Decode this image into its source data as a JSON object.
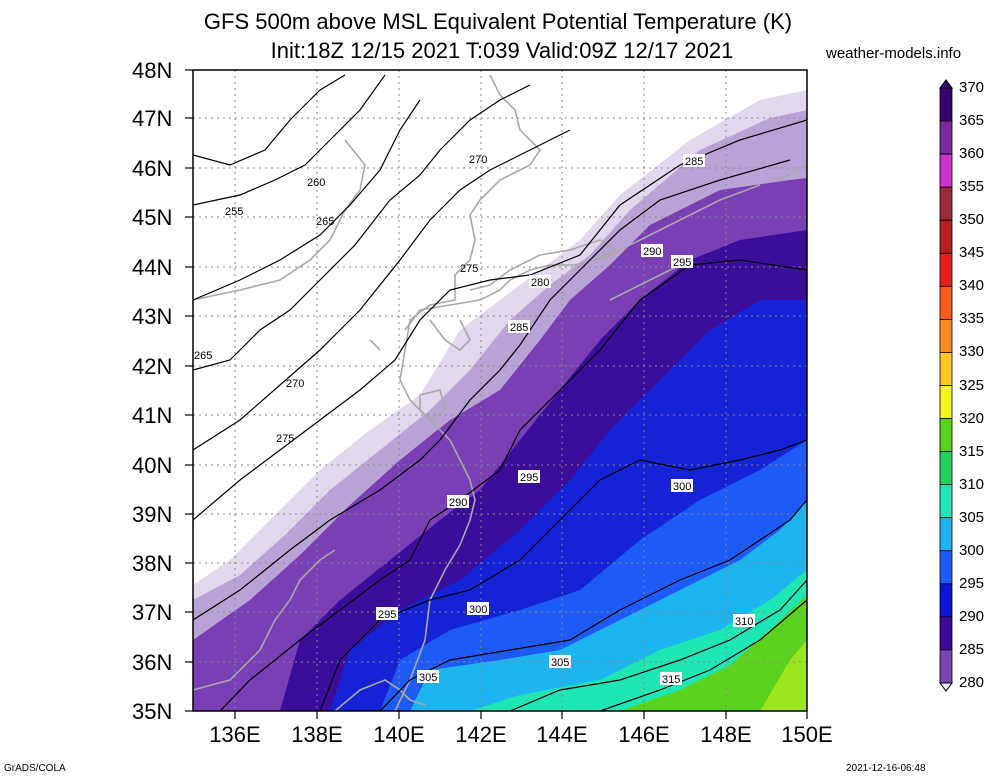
{
  "title": {
    "line1": "GFS 500m above MSL Equivalent Potential Temperature (K)",
    "line2": "Init:18Z 12/15 2021 T:039 Valid:09Z 12/17 2021",
    "site": "weather-models.info"
  },
  "axes": {
    "lat_labels": [
      "48N",
      "47N",
      "46N",
      "45N",
      "44N",
      "43N",
      "42N",
      "41N",
      "40N",
      "39N",
      "38N",
      "37N",
      "36N",
      "35N"
    ],
    "lon_labels": [
      "136E",
      "138E",
      "140E",
      "142E",
      "144E",
      "146E",
      "148E",
      "150E"
    ]
  },
  "colorbar": {
    "levels": [
      "370",
      "365",
      "360",
      "355",
      "350",
      "345",
      "340",
      "335",
      "330",
      "325",
      "320",
      "315",
      "310",
      "305",
      "300",
      "295",
      "290",
      "285",
      "280"
    ],
    "colors": [
      "#3a0070",
      "#7a2aa0",
      "#cc33cc",
      "#9b2a3a",
      "#b82020",
      "#e61e1e",
      "#ff5a1e",
      "#ff8c1e",
      "#ffc81e",
      "#f5f51e",
      "#5ad21e",
      "#1ed25a",
      "#1ee6b4",
      "#1eb4f0",
      "#1e5af5",
      "#0a14d2",
      "#3c0a96",
      "#7846b4",
      "#d2c3e6"
    ]
  },
  "contours": {
    "labels": [
      "255",
      "260",
      "265",
      "265",
      "270",
      "270",
      "275",
      "275",
      "280",
      "285",
      "285",
      "290",
      "290",
      "295",
      "295",
      "295",
      "300",
      "300",
      "305",
      "305",
      "310",
      "315"
    ]
  },
  "footer": {
    "left": "GrADS/COLA",
    "right": "2021-12-16-06:48"
  }
}
